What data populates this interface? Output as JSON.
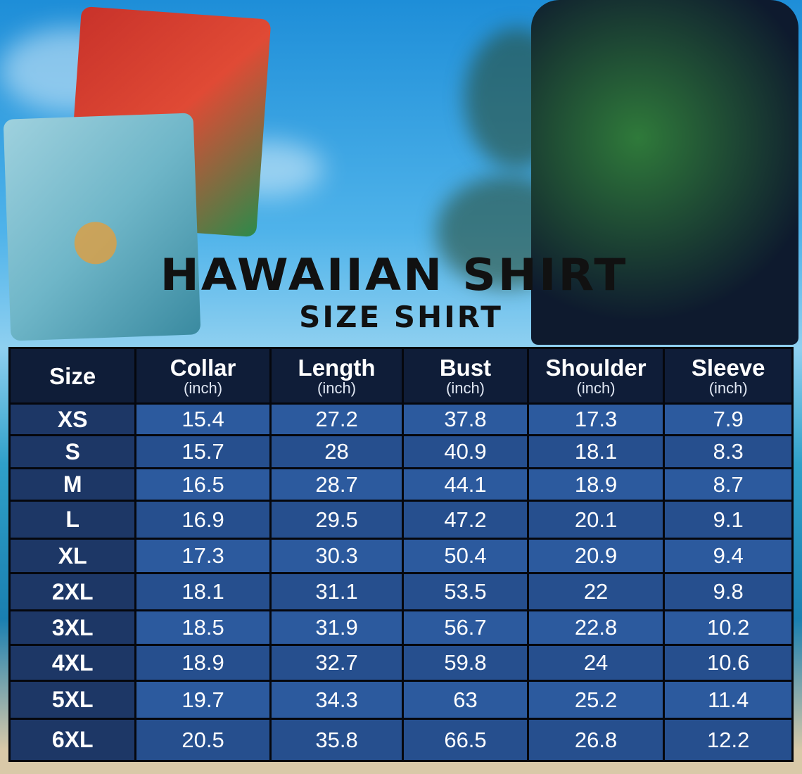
{
  "title": "HAWAIIAN SHIRT",
  "subtitle": "SIZE SHIRT",
  "table": {
    "headers": [
      {
        "label": "Size",
        "unit": ""
      },
      {
        "label": "Collar",
        "unit": "(inch)"
      },
      {
        "label": "Length",
        "unit": "(inch)"
      },
      {
        "label": "Bust",
        "unit": "(inch)"
      },
      {
        "label": "Shoulder",
        "unit": "(inch)"
      },
      {
        "label": "Sleeve",
        "unit": "(inch)"
      }
    ],
    "rows": [
      [
        "XS",
        "15.4",
        "27.2",
        "37.8",
        "17.3",
        "7.9"
      ],
      [
        "S",
        "15.7",
        "28",
        "40.9",
        "18.1",
        "8.3"
      ],
      [
        "M",
        "16.5",
        "28.7",
        "44.1",
        "18.9",
        "8.7"
      ],
      [
        "L",
        "16.9",
        "29.5",
        "47.2",
        "20.1",
        "9.1"
      ],
      [
        "XL",
        "17.3",
        "30.3",
        "50.4",
        "20.9",
        "9.4"
      ],
      [
        "2XL",
        "18.1",
        "31.1",
        "53.5",
        "22",
        "9.8"
      ],
      [
        "3XL",
        "18.5",
        "31.9",
        "56.7",
        "22.8",
        "10.2"
      ],
      [
        "4XL",
        "18.9",
        "32.7",
        "59.8",
        "24",
        "10.6"
      ],
      [
        "5XL",
        "19.7",
        "34.3",
        "63",
        "25.2",
        "11.4"
      ],
      [
        "6XL",
        "20.5",
        "35.8",
        "66.5",
        "26.8",
        "12.2"
      ]
    ]
  },
  "colors": {
    "header": "#0f1d38",
    "size_cell": "#1d3766",
    "value_cell": "#2c5a9e",
    "grid": "#05070d"
  }
}
